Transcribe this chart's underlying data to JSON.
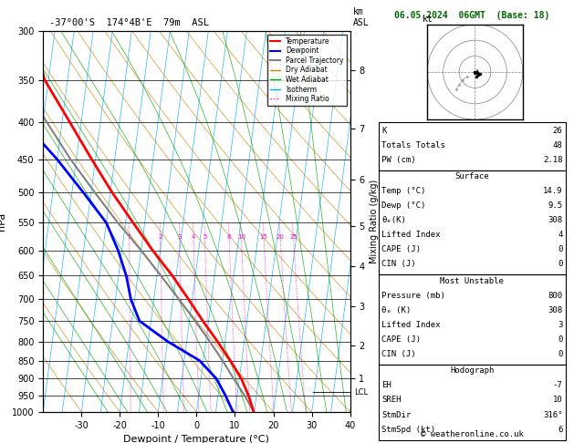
{
  "title_left": "-37°00'S  174°4B'E  79m  ASL",
  "title_right": "06.05.2024  06GMT  (Base: 18)",
  "xlabel": "Dewpoint / Temperature (°C)",
  "ylabel_left": "hPa",
  "pressure_ticks": [
    300,
    350,
    400,
    450,
    500,
    550,
    600,
    650,
    700,
    750,
    800,
    850,
    900,
    950,
    1000
  ],
  "temp_ticks": [
    -30,
    -20,
    -10,
    0,
    10,
    20,
    30,
    40
  ],
  "temp_color": "#ff0000",
  "dewp_color": "#0000ff",
  "parcel_color": "#808080",
  "dry_adiabat_color": "#cc8800",
  "wet_adiabat_color": "#00aa00",
  "isotherm_color": "#00aaff",
  "mixing_ratio_color": "#ff00cc",
  "temperature_profile": {
    "pressure": [
      1000,
      950,
      900,
      850,
      800,
      750,
      700,
      650,
      600,
      550,
      500,
      450,
      400,
      350,
      300
    ],
    "temp": [
      14.9,
      13.0,
      10.5,
      7.0,
      3.0,
      -1.5,
      -6.0,
      -11.0,
      -17.0,
      -23.0,
      -29.5,
      -36.0,
      -43.0,
      -51.0,
      -56.0
    ]
  },
  "dewpoint_profile": {
    "pressure": [
      1000,
      950,
      900,
      850,
      800,
      750,
      700,
      650,
      600,
      550,
      500,
      450,
      400,
      350,
      300
    ],
    "temp": [
      9.5,
      7.0,
      4.0,
      -1.0,
      -10.0,
      -18.0,
      -21.0,
      -23.0,
      -26.0,
      -30.0,
      -37.0,
      -45.0,
      -55.0,
      -62.0,
      -68.0
    ]
  },
  "parcel_profile": {
    "pressure": [
      1000,
      950,
      900,
      850,
      800,
      750,
      700,
      650,
      600,
      550,
      500,
      450,
      400,
      350,
      300
    ],
    "temp": [
      14.9,
      12.0,
      8.5,
      5.0,
      1.0,
      -3.5,
      -8.5,
      -14.0,
      -20.0,
      -27.0,
      -34.0,
      -41.5,
      -49.0,
      -57.0,
      -63.0
    ]
  },
  "mixing_ratio_lines": [
    1,
    2,
    3,
    4,
    5,
    8,
    10,
    15,
    20,
    25
  ],
  "km_ticks": [
    1,
    2,
    3,
    4,
    5,
    6,
    7,
    8
  ],
  "km_pressures": [
    900,
    810,
    715,
    630,
    555,
    480,
    408,
    340
  ],
  "lcl_pressure": 940,
  "stats": {
    "K": 26,
    "Totals_Totals": 48,
    "PW_cm": 2.18,
    "Surface_Temp": 14.9,
    "Surface_Dewp": 9.5,
    "Surface_theta_e": 308,
    "Surface_LI": 4,
    "Surface_CAPE": 0,
    "Surface_CIN": 0,
    "MU_Pressure": 800,
    "MU_theta_e": 308,
    "MU_LI": 3,
    "MU_CAPE": 0,
    "MU_CIN": 0,
    "Hodo_EH": -7,
    "Hodo_SREH": 10,
    "Hodo_StmDir": "316°",
    "Hodo_StmSpd": 6
  },
  "watermark": "© weatheronline.co.uk"
}
